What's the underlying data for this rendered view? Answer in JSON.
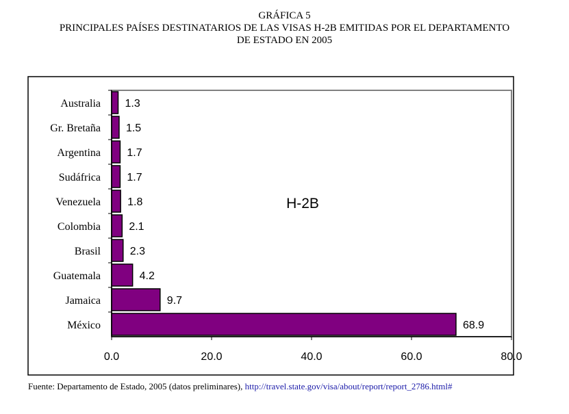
{
  "header": {
    "line1": "GRÁFICA 5",
    "line2": "PRINCIPALES PAÍSES DESTINATARIOS DE LAS VISAS H-2B EMITIDAS POR EL DEPARTAMENTO",
    "line3": "DE ESTADO EN 2005"
  },
  "chart_data": {
    "type": "bar",
    "orientation": "horizontal",
    "categories": [
      "Australia",
      "Gr. Bretaña",
      "Argentina",
      "Sudáfrica",
      "Venezuela",
      "Colombia",
      "Brasil",
      "Guatemala",
      "Jamaica",
      "México"
    ],
    "values": [
      1.3,
      1.5,
      1.7,
      1.7,
      1.8,
      2.1,
      2.3,
      4.2,
      9.7,
      68.9
    ],
    "value_labels": [
      "1.3",
      "1.5",
      "1.7",
      "1.7",
      "1.8",
      "2.1",
      "2.3",
      "4.2",
      "9.7",
      "68.9"
    ],
    "annotation": "H-2B",
    "xlim": [
      0,
      80
    ],
    "xticks": [
      "0.0",
      "20.0",
      "40.0",
      "60.0",
      "80.0"
    ],
    "grid": false,
    "bar_color": "#800080"
  },
  "footer": {
    "source_text": "Fuente: Departamento de Estado, 2005 (datos preliminares), ",
    "source_link": "http://travel.state.gov/visa/about/report/report_2786.html#"
  }
}
